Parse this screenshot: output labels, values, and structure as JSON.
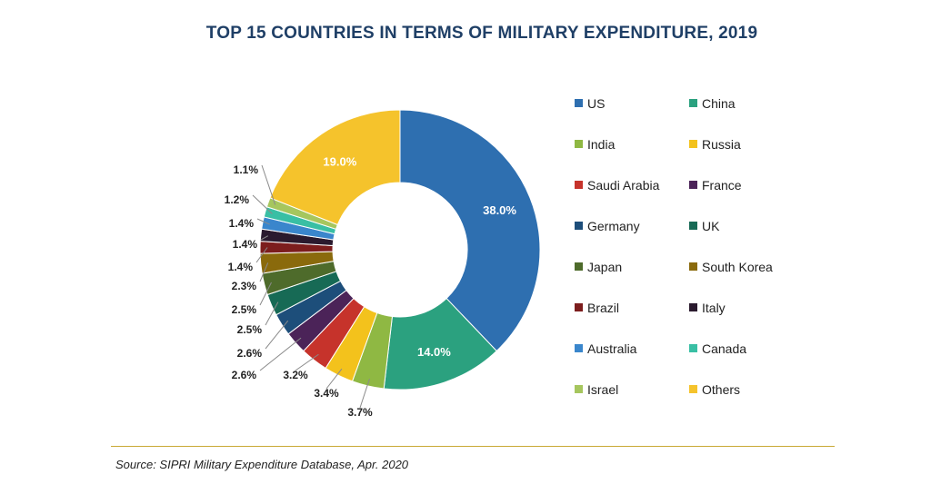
{
  "chart_data": {
    "type": "pie",
    "title": "TOP 15 COUNTRIES IN TERMS OF MILITARY EXPENDITURE, 2019",
    "source": "Source: SIPRI Military Expenditure Database, Apr. 2020",
    "legend_position": "right",
    "slices": [
      {
        "label": "US",
        "value": 38.0,
        "display": "38.0%",
        "color": "#2e6fb0"
      },
      {
        "label": "China",
        "value": 14.0,
        "display": "14.0%",
        "color": "#2ba17f"
      },
      {
        "label": "India",
        "value": 3.7,
        "display": "3.7%",
        "color": "#8fb843"
      },
      {
        "label": "Russia",
        "value": 3.4,
        "display": "3.4%",
        "color": "#f3c21c"
      },
      {
        "label": "Saudi Arabia",
        "value": 3.2,
        "display": "3.2%",
        "color": "#c6332b"
      },
      {
        "label": "France",
        "value": 2.6,
        "display": "2.6%",
        "color": "#4b2358"
      },
      {
        "label": "Germany",
        "value": 2.6,
        "display": "2.6%",
        "color": "#1d4e7a"
      },
      {
        "label": "UK",
        "value": 2.5,
        "display": "2.5%",
        "color": "#176a55"
      },
      {
        "label": "Japan",
        "value": 2.5,
        "display": "2.5%",
        "color": "#4e6b2b"
      },
      {
        "label": "South Korea",
        "value": 2.3,
        "display": "2.3%",
        "color": "#8a6a0c"
      },
      {
        "label": "Brazil",
        "value": 1.4,
        "display": "1.4%",
        "color": "#7c1d1d"
      },
      {
        "label": "Italy",
        "value": 1.4,
        "display": "1.4%",
        "color": "#2a1a2e"
      },
      {
        "label": "Australia",
        "value": 1.4,
        "display": "1.4%",
        "color": "#3a86cc"
      },
      {
        "label": "Canada",
        "value": 1.2,
        "display": "1.2%",
        "color": "#39bfa4"
      },
      {
        "label": "Israel",
        "value": 1.1,
        "display": "1.1%",
        "color": "#a6c65e"
      },
      {
        "label": "Others",
        "value": 19.0,
        "display": "19.0%",
        "color": "#f5c32c"
      }
    ]
  }
}
